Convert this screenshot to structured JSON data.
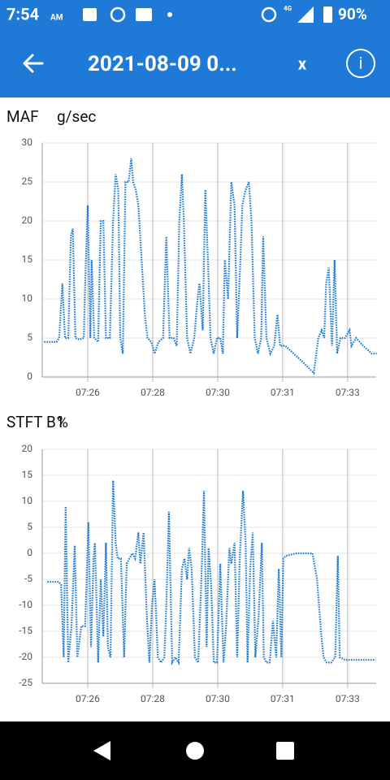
{
  "status_bar": {
    "time": "7:54",
    "ampm": "AM",
    "network": "4G",
    "battery": "90%"
  },
  "app_bar": {
    "title": "2021-08-09 0...",
    "close": "x",
    "info": "i"
  },
  "chart_data": [
    {
      "type": "line",
      "title": "MAF",
      "unit": "g/sec",
      "color": "#1f7bd4",
      "grid": true,
      "xlim": [
        0.3,
        5.44
      ],
      "xticks": [
        {
          "value": 1,
          "label": "07:26"
        },
        {
          "value": 2,
          "label": "07:28"
        },
        {
          "value": 3,
          "label": "07:30"
        },
        {
          "value": 4,
          "label": "07:31"
        },
        {
          "value": 5,
          "label": "07:33"
        }
      ],
      "ylim": [
        0,
        30
      ],
      "yticks": [
        0,
        5,
        10,
        15,
        20,
        25,
        30
      ],
      "x": [
        0.33,
        0.52,
        0.56,
        0.61,
        0.65,
        0.7,
        0.74,
        0.77,
        0.81,
        0.87,
        0.94,
        0.96,
        1.0,
        1.04,
        1.06,
        1.1,
        1.16,
        1.2,
        1.24,
        1.28,
        1.34,
        1.39,
        1.43,
        1.47,
        1.5,
        1.54,
        1.58,
        1.63,
        1.67,
        1.7,
        1.74,
        1.78,
        1.83,
        1.88,
        1.92,
        1.98,
        2.03,
        2.09,
        2.16,
        2.21,
        2.26,
        2.32,
        2.37,
        2.41,
        2.45,
        2.48,
        2.53,
        2.58,
        2.64,
        2.69,
        2.72,
        2.77,
        2.81,
        2.85,
        2.89,
        2.94,
        2.99,
        3.04,
        3.08,
        3.11,
        3.16,
        3.21,
        3.26,
        3.3,
        3.34,
        3.38,
        3.43,
        3.48,
        3.52,
        3.57,
        3.62,
        3.67,
        3.7,
        3.75,
        3.81,
        3.87,
        3.92,
        3.96,
        4.04,
        4.3,
        4.48,
        4.55,
        4.6,
        4.64,
        4.67,
        4.71,
        4.76,
        4.8,
        4.84,
        4.89,
        4.96,
        5.03,
        5.06,
        5.13,
        5.24,
        5.37,
        5.45
      ],
      "values": [
        4.5,
        4.5,
        5,
        12,
        5,
        5,
        18,
        19,
        5,
        4.8,
        5,
        12,
        22,
        5,
        15,
        5,
        4.5,
        20,
        20,
        5,
        5,
        20,
        26,
        24,
        5,
        3,
        25,
        25,
        28,
        25,
        24,
        22,
        15,
        8,
        5,
        4.5,
        3,
        4.5,
        5,
        18,
        5,
        5,
        4,
        20,
        26,
        20,
        5,
        3,
        5,
        10,
        12,
        6,
        24,
        15,
        5,
        3,
        5,
        5,
        3,
        15,
        10,
        25,
        22,
        5,
        13,
        22,
        24,
        25,
        20,
        5,
        3,
        5,
        18,
        5,
        3,
        4,
        8,
        4,
        4,
        2,
        0.5,
        5,
        6,
        5,
        12,
        14,
        4,
        15,
        3,
        5,
        5,
        6,
        4,
        5,
        4,
        3,
        3
      ]
    },
    {
      "type": "line",
      "title": "STFT B1",
      "unit": "%",
      "color": "#1f7bd4",
      "grid": true,
      "xlim": [
        0.3,
        5.44
      ],
      "xticks": [
        {
          "value": 1,
          "label": "07:26"
        },
        {
          "value": 2,
          "label": "07:28"
        },
        {
          "value": 3,
          "label": "07:30"
        },
        {
          "value": 4,
          "label": "07:31"
        },
        {
          "value": 5,
          "label": "07:33"
        }
      ],
      "ylim": [
        -25,
        20
      ],
      "yticks": [
        -25,
        -20,
        -15,
        -10,
        -5,
        0,
        5,
        10,
        15,
        20
      ],
      "x": [
        0.38,
        0.55,
        0.59,
        0.63,
        0.66,
        0.7,
        0.75,
        0.8,
        0.84,
        0.9,
        0.96,
        1.01,
        1.05,
        1.09,
        1.11,
        1.16,
        1.2,
        1.24,
        1.28,
        1.31,
        1.35,
        1.39,
        1.43,
        1.46,
        1.51,
        1.56,
        1.6,
        1.64,
        1.69,
        1.73,
        1.78,
        1.81,
        1.86,
        1.91,
        1.95,
        1.99,
        2.03,
        2.08,
        2.13,
        2.18,
        2.21,
        2.25,
        2.3,
        2.35,
        2.4,
        2.45,
        2.49,
        2.53,
        2.56,
        2.6,
        2.65,
        2.7,
        2.75,
        2.79,
        2.83,
        2.86,
        2.9,
        2.94,
        2.99,
        3.04,
        3.09,
        3.13,
        3.18,
        3.21,
        3.26,
        3.3,
        3.34,
        3.39,
        3.43,
        3.46,
        3.5,
        3.54,
        3.58,
        3.63,
        3.68,
        3.71,
        3.75,
        3.8,
        3.85,
        3.9,
        3.94,
        3.98,
        4.01,
        4.05,
        4.21,
        4.46,
        4.53,
        4.59,
        4.63,
        4.68,
        4.75,
        4.81,
        4.85,
        4.88,
        4.96,
        5.21,
        5.43
      ],
      "values": [
        -5.5,
        -5.5,
        -6,
        -20,
        9,
        -21,
        -14,
        1.5,
        -20,
        -14,
        -14,
        6,
        -18,
        -1,
        2,
        -21,
        -5,
        -16,
        2,
        -18,
        -20,
        14,
        2,
        -1,
        -1,
        -20,
        -2,
        -1,
        0,
        -1,
        4,
        -2,
        4,
        -12,
        -21,
        -10,
        -5,
        -20,
        -21,
        -20,
        -10,
        8,
        -21,
        -20,
        -21,
        -3,
        -1,
        -5,
        1,
        -3,
        -20,
        -21,
        -5,
        12,
        -18,
        1,
        -6,
        -21,
        -21,
        -2,
        -21,
        -14,
        1,
        -2,
        2,
        -20,
        -1,
        12,
        2,
        -21,
        -3,
        4,
        -20,
        -12,
        2,
        -20,
        -21,
        -21,
        -13,
        -20,
        -3,
        -20,
        -1,
        -0.5,
        0,
        0,
        -5,
        -15,
        -20,
        -21,
        -21,
        -20,
        -0.5,
        -20,
        -20.5,
        -20.5,
        -20.5
      ]
    }
  ]
}
